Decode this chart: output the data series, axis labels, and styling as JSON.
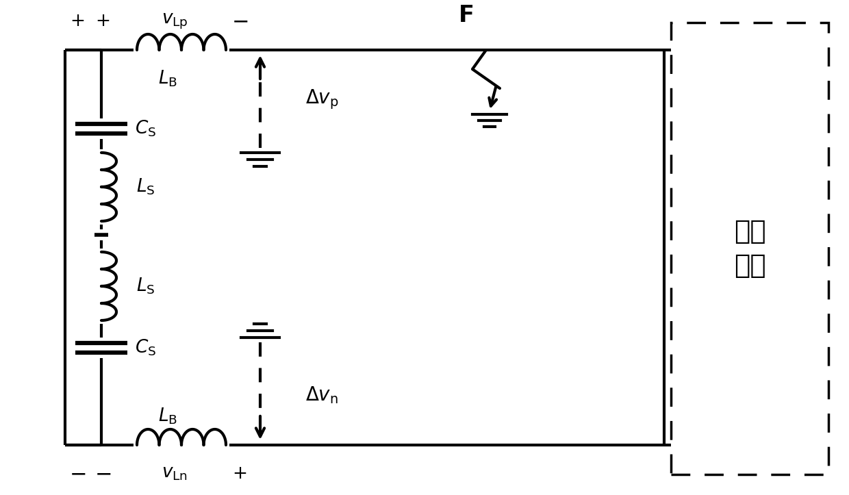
{
  "bg_color": "#ffffff",
  "line_color": "#000000",
  "line_width": 3.0,
  "fig_width": 12.4,
  "fig_height": 7.23,
  "dpi": 100
}
